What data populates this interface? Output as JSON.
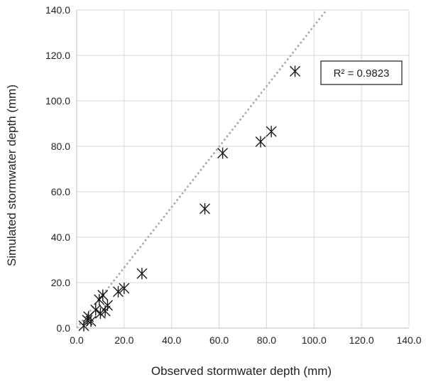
{
  "chart_data": {
    "type": "scatter",
    "xlabel": "Observed stormwater depth (mm)",
    "ylabel": "Simulated stormwater depth (mm)",
    "xlim": [
      0,
      140
    ],
    "ylim": [
      0,
      140
    ],
    "x_ticks": [
      "0.0",
      "20.0",
      "40.0",
      "60.0",
      "80.0",
      "100.0",
      "120.0",
      "140.0"
    ],
    "y_ticks": [
      "0.0",
      "20.0",
      "40.0",
      "60.0",
      "80.0",
      "100.0",
      "120.0",
      "140.0"
    ],
    "grid": true,
    "marker": "asterisk",
    "marker_color": "#1a1a1a",
    "trendline_color": "#a6a6a6",
    "trendline": {
      "style": "dotted",
      "slope": 1.33,
      "intercept": 0
    },
    "annotation": "R² = 0.9823",
    "points": [
      {
        "x": 3,
        "y": 1
      },
      {
        "x": 4.5,
        "y": 3.5
      },
      {
        "x": 5,
        "y": 5
      },
      {
        "x": 6,
        "y": 3
      },
      {
        "x": 8,
        "y": 8
      },
      {
        "x": 9.5,
        "y": 12.5
      },
      {
        "x": 10,
        "y": 6.5
      },
      {
        "x": 11,
        "y": 14.5
      },
      {
        "x": 12,
        "y": 7.5
      },
      {
        "x": 13,
        "y": 10
      },
      {
        "x": 17.5,
        "y": 16
      },
      {
        "x": 20,
        "y": 17.5
      },
      {
        "x": 27.5,
        "y": 24
      },
      {
        "x": 54,
        "y": 52.5
      },
      {
        "x": 61.5,
        "y": 77
      },
      {
        "x": 77.5,
        "y": 82
      },
      {
        "x": 82,
        "y": 86.5
      },
      {
        "x": 92,
        "y": 113
      }
    ]
  }
}
